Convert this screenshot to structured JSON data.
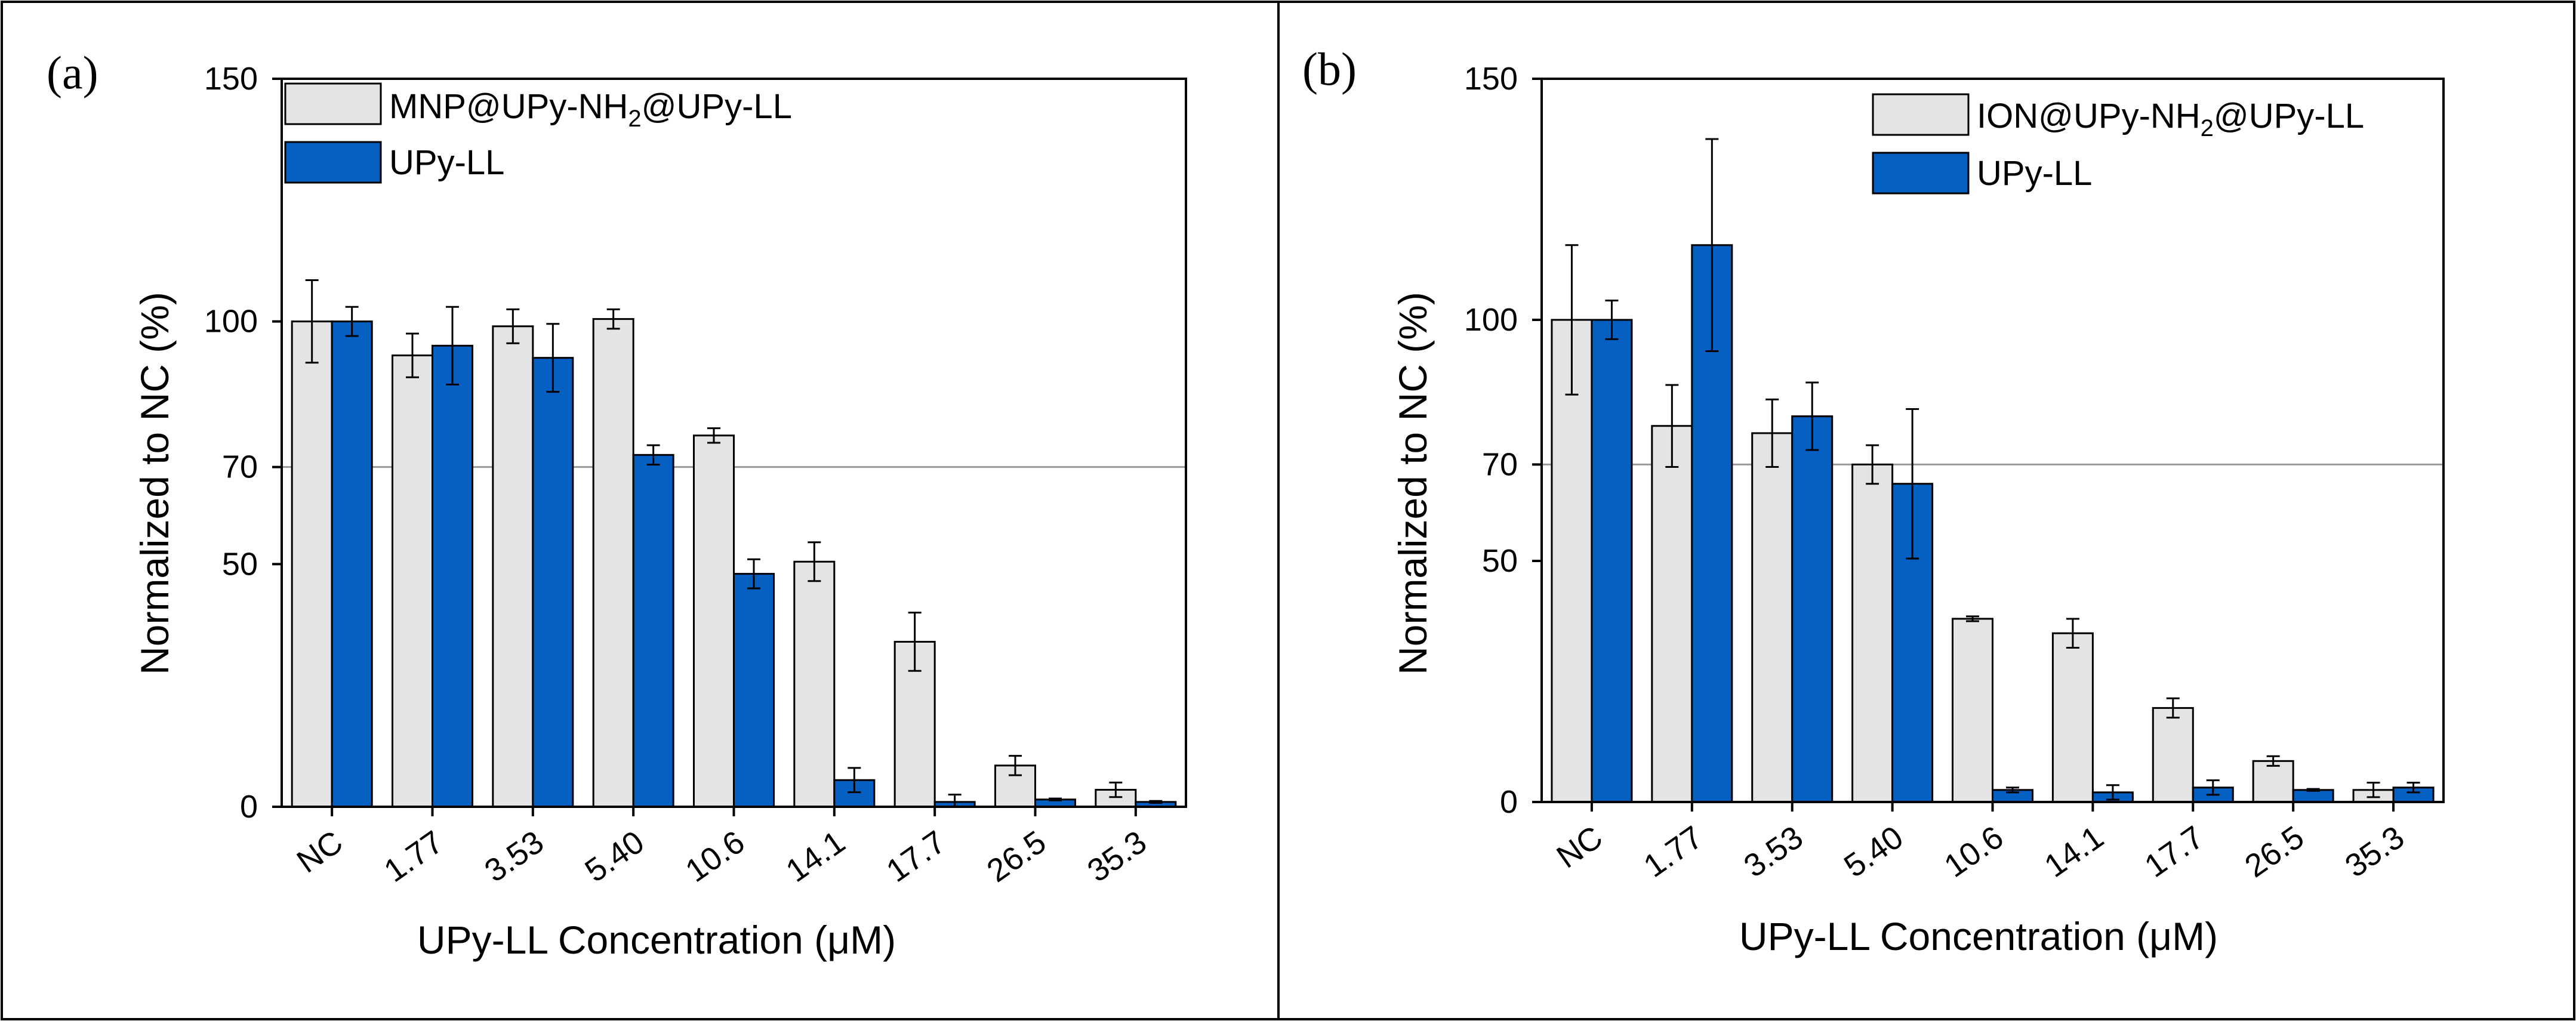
{
  "chart_data": [
    {
      "type": "bar",
      "panel_label": "(a)",
      "categories": [
        "NC",
        "1.77",
        "3.53",
        "5.40",
        "10.6",
        "14.1",
        "17.7",
        "26.5",
        "35.3"
      ],
      "series": [
        {
          "name": "MNP@UPy-NH2@UPy-LL",
          "legend_main": "MNP@UPy-NH",
          "legend_sub": "2",
          "legend_tail": "@UPy-LL",
          "color": "#e4e4e4",
          "values": [
            100,
            93,
            99,
            100.5,
            76.5,
            50.5,
            34,
            8.5,
            3.5
          ],
          "errors": [
            8.5,
            4.5,
            3.5,
            2,
            1.5,
            4,
            6,
            2,
            1.5
          ]
        },
        {
          "name": "UPy-LL",
          "legend_main": "UPy-LL",
          "legend_sub": "",
          "legend_tail": "",
          "color": "#0560c2",
          "values": [
            100,
            95,
            92.5,
            72.5,
            48,
            5.5,
            1,
            1.5,
            1
          ],
          "errors": [
            3,
            8,
            7,
            2,
            3,
            2.5,
            1.5,
            0.2,
            0.2
          ]
        }
      ],
      "title": "",
      "xlabel": "UPy-LL Concentration (μM)",
      "ylabel": "Normalized to NC (%)",
      "yticks": [
        0,
        50,
        70,
        100,
        150
      ],
      "ylim": [
        0,
        150
      ],
      "reference_line": 70,
      "grid": false,
      "legend": "top-left"
    },
    {
      "type": "bar",
      "panel_label": "(b)",
      "categories": [
        "NC",
        "1.77",
        "3.53",
        "5.40",
        "10.6",
        "14.1",
        "17.7",
        "26.5",
        "35.3"
      ],
      "series": [
        {
          "name": "ION@UPy-NH2@UPy-LL",
          "legend_main": "ION@UPy-NH",
          "legend_sub": "2",
          "legend_tail": "@UPy-LL",
          "color": "#e4e4e4",
          "values": [
            100,
            78,
            76.5,
            70,
            38,
            35,
            19.5,
            8.5,
            2.5
          ],
          "errors": [
            15.5,
            8.5,
            7,
            4,
            0.5,
            3,
            2,
            1,
            1.5
          ]
        },
        {
          "name": "UPy-LL",
          "legend_main": "UPy-LL",
          "legend_sub": "",
          "legend_tail": "",
          "color": "#0560c2",
          "values": [
            100,
            115.5,
            80,
            66,
            2.5,
            2,
            3,
            2.5,
            3
          ],
          "errors": [
            4,
            22,
            7,
            15.5,
            0.5,
            1.5,
            1.5,
            0.2,
            1
          ]
        }
      ],
      "title": "",
      "xlabel": "UPy-LL Concentration (μM)",
      "ylabel": "Normalized to NC (%)",
      "yticks": [
        0,
        50,
        70,
        100,
        150
      ],
      "ylim": [
        0,
        150
      ],
      "reference_line": 70,
      "grid": false,
      "legend": "top-right"
    }
  ]
}
